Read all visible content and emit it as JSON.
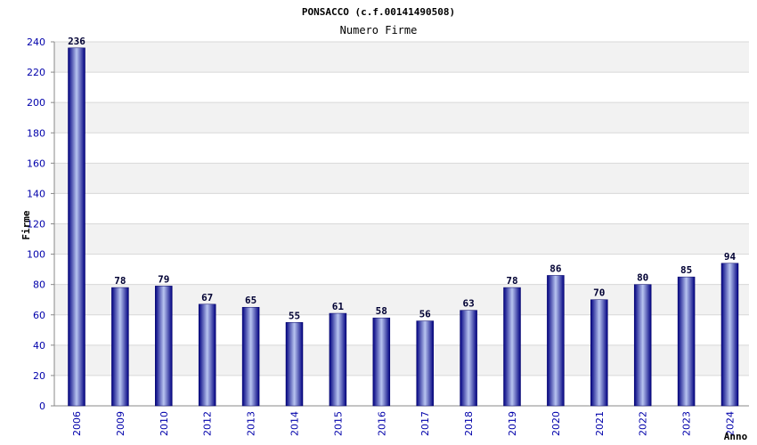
{
  "chart_data": {
    "type": "bar",
    "title": "PONSACCO (c.f.00141490508)",
    "subtitle": "Numero Firme",
    "xlabel": "Anno",
    "ylabel": "Firme",
    "ylim": [
      0,
      240
    ],
    "yticks": [
      0,
      20,
      40,
      60,
      80,
      100,
      120,
      140,
      160,
      180,
      200,
      220,
      240
    ],
    "grid": true,
    "categories": [
      "2006",
      "2009",
      "2010",
      "2012",
      "2013",
      "2014",
      "2015",
      "2016",
      "2017",
      "2018",
      "2019",
      "2020",
      "2021",
      "2022",
      "2023",
      "2024"
    ],
    "values": [
      236,
      78,
      79,
      67,
      65,
      55,
      61,
      58,
      56,
      63,
      78,
      86,
      70,
      80,
      85,
      94
    ],
    "colors": {
      "bar_dark": "#000080",
      "bar_light": "#b8c4f0",
      "band": "#f2f2f2",
      "grid": "#d8d8d8",
      "tick_text": "#0000aa"
    }
  }
}
